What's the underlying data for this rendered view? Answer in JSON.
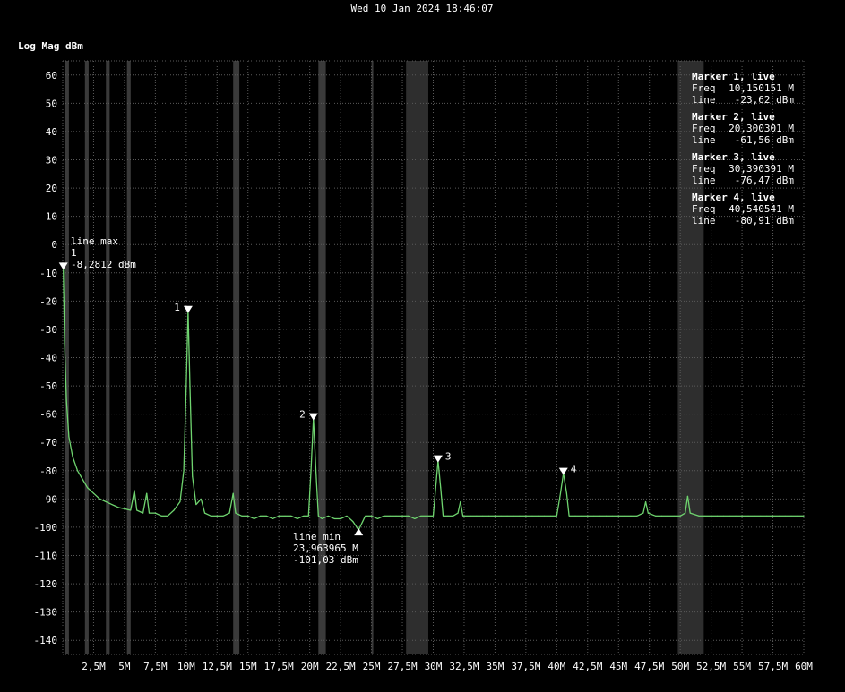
{
  "header": {
    "timestamp": "Wed 10 Jan 2024 18:46:07"
  },
  "y_title": "Log Mag dBm",
  "marker_panel": [
    {
      "title": "Marker 1, live",
      "freq_label": "Freq",
      "freq": "10,150151 M",
      "line_label": "line",
      "line": "-23,62 dBm"
    },
    {
      "title": "Marker 2, live",
      "freq_label": "Freq",
      "freq": "20,300301 M",
      "line_label": "line",
      "line": "-61,56 dBm"
    },
    {
      "title": "Marker 3, live",
      "freq_label": "Freq",
      "freq": "30,390391 M",
      "line_label": "line",
      "line": "-76,47 dBm"
    },
    {
      "title": "Marker 4, live",
      "freq_label": "Freq",
      "freq": "40,540541 M",
      "line_label": "line",
      "line": "-80,91 dBm"
    }
  ],
  "line_max": {
    "label": "line max",
    "index": "1",
    "value": "-8,2812 dBm"
  },
  "line_min": {
    "label": "line min",
    "freq": "23,963965 M",
    "value": "-101,03 dBm"
  },
  "colors": {
    "trace": "#6fd46f",
    "background": "#000000",
    "band": "#2e2e2e",
    "text": "#ffffff"
  },
  "chart_data": {
    "type": "line",
    "title": "",
    "xlabel": "",
    "ylabel": "Log Mag dBm",
    "xlim": [
      0,
      60
    ],
    "ylim": [
      -145,
      65
    ],
    "x_unit": "MHz",
    "grid": true,
    "x_ticks": [
      {
        "v": 2.5,
        "label": "2,5M"
      },
      {
        "v": 5,
        "label": "5M"
      },
      {
        "v": 7.5,
        "label": "7,5M"
      },
      {
        "v": 10,
        "label": "10M"
      },
      {
        "v": 12.5,
        "label": "12,5M"
      },
      {
        "v": 15,
        "label": "15M"
      },
      {
        "v": 17.5,
        "label": "17,5M"
      },
      {
        "v": 20,
        "label": "20M"
      },
      {
        "v": 22.5,
        "label": "22,5M"
      },
      {
        "v": 25,
        "label": "25M"
      },
      {
        "v": 27.5,
        "label": "27,5M"
      },
      {
        "v": 30,
        "label": "30M"
      },
      {
        "v": 32.5,
        "label": "32,5M"
      },
      {
        "v": 35,
        "label": "35M"
      },
      {
        "v": 37.5,
        "label": "37,5M"
      },
      {
        "v": 40,
        "label": "40M"
      },
      {
        "v": 42.5,
        "label": "42,5M"
      },
      {
        "v": 45,
        "label": "45M"
      },
      {
        "v": 47.5,
        "label": "47,5M"
      },
      {
        "v": 50,
        "label": "50M"
      },
      {
        "v": 52.5,
        "label": "52,5M"
      },
      {
        "v": 55,
        "label": "55M"
      },
      {
        "v": 57.5,
        "label": "57,5M"
      },
      {
        "v": 60,
        "label": "60M"
      }
    ],
    "y_ticks": [
      {
        "v": 60,
        "label": "60"
      },
      {
        "v": 50,
        "label": "50"
      },
      {
        "v": 40,
        "label": "40"
      },
      {
        "v": 30,
        "label": "30"
      },
      {
        "v": 20,
        "label": "20"
      },
      {
        "v": 10,
        "label": "10"
      },
      {
        "v": 0,
        "label": "0"
      },
      {
        "v": -10,
        "label": "-10"
      },
      {
        "v": -20,
        "label": "-20"
      },
      {
        "v": -30,
        "label": "-30"
      },
      {
        "v": -40,
        "label": "-40"
      },
      {
        "v": -50,
        "label": "-50"
      },
      {
        "v": -60,
        "label": "-60"
      },
      {
        "v": -70,
        "label": "-70"
      },
      {
        "v": -80,
        "label": "-80"
      },
      {
        "v": -90,
        "label": "-90"
      },
      {
        "v": -100,
        "label": "-100"
      },
      {
        "v": -110,
        "label": "-110"
      },
      {
        "v": -120,
        "label": "-120"
      },
      {
        "v": -130,
        "label": "-130"
      },
      {
        "v": -140,
        "label": "-140"
      }
    ],
    "bands": [
      {
        "from": 27.8,
        "to": 29.6
      },
      {
        "from": 49.8,
        "to": 51.9
      }
    ],
    "thin_bands": [
      {
        "from": 0.2,
        "to": 0.5
      },
      {
        "from": 1.8,
        "to": 2.1
      },
      {
        "from": 3.5,
        "to": 3.8
      },
      {
        "from": 5.2,
        "to": 5.5
      },
      {
        "from": 13.8,
        "to": 14.3
      },
      {
        "from": 20.7,
        "to": 21.3
      },
      {
        "from": 25.0,
        "to": 25.1
      }
    ],
    "series": [
      {
        "points": [
          [
            0.05,
            -8.3
          ],
          [
            0.15,
            -35
          ],
          [
            0.3,
            -55
          ],
          [
            0.5,
            -68
          ],
          [
            0.8,
            -75
          ],
          [
            1.2,
            -80
          ],
          [
            1.6,
            -83
          ],
          [
            2.0,
            -86
          ],
          [
            2.5,
            -88
          ],
          [
            3.0,
            -90
          ],
          [
            3.5,
            -91
          ],
          [
            4.0,
            -92
          ],
          [
            4.5,
            -93
          ],
          [
            5.0,
            -93.5
          ],
          [
            5.5,
            -94
          ],
          [
            5.8,
            -87
          ],
          [
            6.0,
            -94
          ],
          [
            6.5,
            -95
          ],
          [
            6.8,
            -88
          ],
          [
            7.0,
            -95
          ],
          [
            7.5,
            -95
          ],
          [
            8.0,
            -96
          ],
          [
            8.5,
            -96
          ],
          [
            9.0,
            -94
          ],
          [
            9.5,
            -91
          ],
          [
            9.8,
            -80
          ],
          [
            10.0,
            -50
          ],
          [
            10.15,
            -23.6
          ],
          [
            10.3,
            -50
          ],
          [
            10.5,
            -82
          ],
          [
            10.8,
            -92
          ],
          [
            11.2,
            -90
          ],
          [
            11.5,
            -95
          ],
          [
            12.0,
            -96
          ],
          [
            12.5,
            -96
          ],
          [
            13.0,
            -96
          ],
          [
            13.5,
            -95
          ],
          [
            13.8,
            -88
          ],
          [
            14.0,
            -95
          ],
          [
            14.5,
            -96
          ],
          [
            15.0,
            -96
          ],
          [
            15.5,
            -97
          ],
          [
            16.0,
            -96
          ],
          [
            16.5,
            -96
          ],
          [
            17.0,
            -97
          ],
          [
            17.5,
            -96
          ],
          [
            18.0,
            -96
          ],
          [
            18.5,
            -96
          ],
          [
            19.0,
            -97
          ],
          [
            19.5,
            -96
          ],
          [
            19.9,
            -96
          ],
          [
            20.1,
            -80
          ],
          [
            20.3,
            -61.6
          ],
          [
            20.5,
            -80
          ],
          [
            20.7,
            -96
          ],
          [
            21.0,
            -97
          ],
          [
            21.5,
            -96
          ],
          [
            22.0,
            -97
          ],
          [
            22.5,
            -97
          ],
          [
            23.0,
            -96
          ],
          [
            23.5,
            -98
          ],
          [
            23.96,
            -101
          ],
          [
            24.5,
            -96
          ],
          [
            25.0,
            -96
          ],
          [
            25.5,
            -97
          ],
          [
            26.0,
            -96
          ],
          [
            26.5,
            -96
          ],
          [
            27.0,
            -96
          ],
          [
            27.5,
            -96
          ],
          [
            28.0,
            -96
          ],
          [
            28.5,
            -97
          ],
          [
            29.0,
            -96
          ],
          [
            29.5,
            -96
          ],
          [
            30.0,
            -96
          ],
          [
            30.2,
            -86
          ],
          [
            30.39,
            -76.5
          ],
          [
            30.6,
            -86
          ],
          [
            30.8,
            -96
          ],
          [
            31.2,
            -96
          ],
          [
            31.6,
            -96
          ],
          [
            32.0,
            -95
          ],
          [
            32.2,
            -91
          ],
          [
            32.4,
            -96
          ],
          [
            33.0,
            -96
          ],
          [
            33.5,
            -96
          ],
          [
            34.0,
            -96
          ],
          [
            34.5,
            -96
          ],
          [
            35.0,
            -96
          ],
          [
            35.5,
            -96
          ],
          [
            36.0,
            -96
          ],
          [
            36.5,
            -96
          ],
          [
            37.0,
            -96
          ],
          [
            37.5,
            -96
          ],
          [
            38.0,
            -96
          ],
          [
            38.5,
            -96
          ],
          [
            39.0,
            -96
          ],
          [
            39.5,
            -96
          ],
          [
            40.0,
            -96
          ],
          [
            40.3,
            -88
          ],
          [
            40.54,
            -80.9
          ],
          [
            40.8,
            -88
          ],
          [
            41.0,
            -96
          ],
          [
            41.5,
            -96
          ],
          [
            42.0,
            -96
          ],
          [
            42.5,
            -96
          ],
          [
            43.0,
            -96
          ],
          [
            43.5,
            -96
          ],
          [
            44.0,
            -96
          ],
          [
            44.5,
            -96
          ],
          [
            45.0,
            -96
          ],
          [
            45.5,
            -96
          ],
          [
            46.0,
            -96
          ],
          [
            46.5,
            -96
          ],
          [
            47.0,
            -95
          ],
          [
            47.2,
            -91
          ],
          [
            47.4,
            -95
          ],
          [
            48.0,
            -96
          ],
          [
            48.5,
            -96
          ],
          [
            49.0,
            -96
          ],
          [
            49.5,
            -96
          ],
          [
            50.0,
            -96
          ],
          [
            50.4,
            -95
          ],
          [
            50.6,
            -89
          ],
          [
            50.8,
            -95
          ],
          [
            51.5,
            -96
          ],
          [
            52.0,
            -96
          ],
          [
            52.5,
            -96
          ],
          [
            53.0,
            -96
          ],
          [
            53.5,
            -96
          ],
          [
            54.0,
            -96
          ],
          [
            54.5,
            -96
          ],
          [
            55.0,
            -96
          ],
          [
            55.5,
            -96
          ],
          [
            56.0,
            -96
          ],
          [
            56.5,
            -96
          ],
          [
            57.0,
            -96
          ],
          [
            57.5,
            -96
          ],
          [
            58.0,
            -96
          ],
          [
            58.5,
            -96
          ],
          [
            59.0,
            -96
          ],
          [
            59.5,
            -96
          ],
          [
            60.0,
            -96
          ]
        ]
      }
    ],
    "markers": [
      {
        "label": "1",
        "x": 10.15,
        "y": -23.62,
        "label_side": "left"
      },
      {
        "label": "2",
        "x": 20.3,
        "y": -61.56,
        "label_side": "left"
      },
      {
        "label": "3",
        "x": 30.39,
        "y": -76.47,
        "label_side": "right"
      },
      {
        "label": "4",
        "x": 40.54,
        "y": -80.91,
        "label_side": "right"
      }
    ],
    "max_marker": {
      "x": 0.05,
      "y": -8.2812
    },
    "min_marker": {
      "x": 23.96,
      "y": -101.03
    }
  }
}
